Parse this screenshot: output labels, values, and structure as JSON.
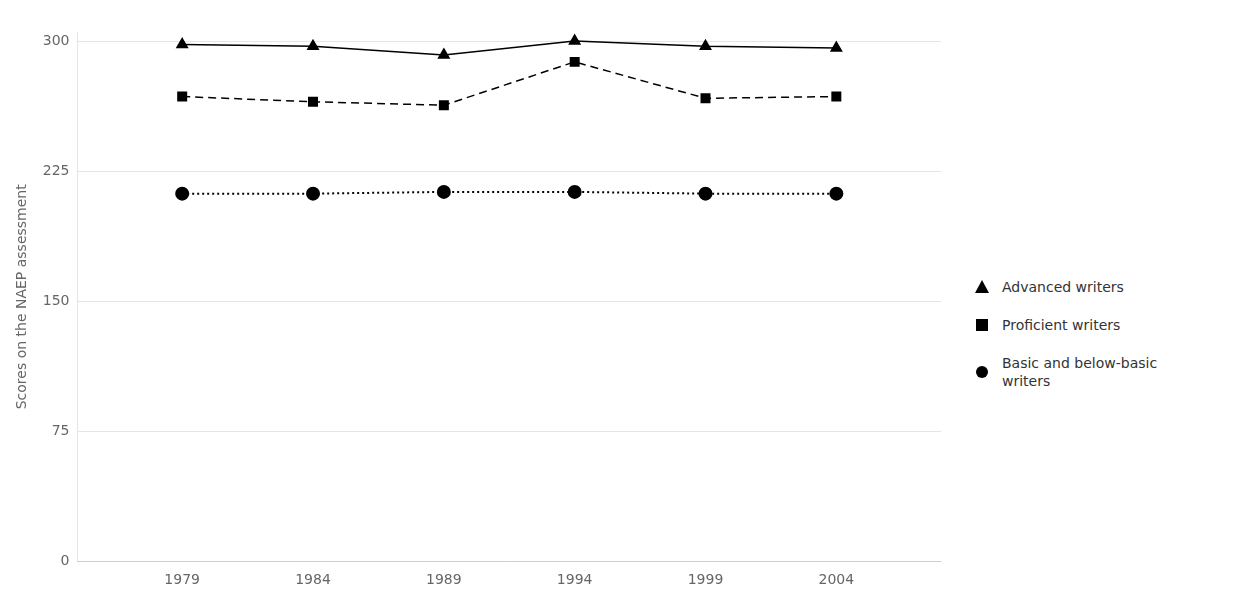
{
  "chart_data": {
    "type": "line",
    "x": [
      1979,
      1984,
      1989,
      1994,
      1999,
      2004
    ],
    "series": [
      {
        "name": "Advanced writers",
        "color": "#000000",
        "values": [
          298,
          297,
          292,
          300,
          297,
          296
        ],
        "marker": "triangle",
        "line_style": "solid"
      },
      {
        "name": "Proficient writers",
        "color": "#000000",
        "values": [
          268,
          265,
          263,
          288,
          267,
          268
        ],
        "marker": "square",
        "line_style": "dashed"
      },
      {
        "name": "Basic and below-basic\nwriters",
        "color": "#000000",
        "values": [
          212,
          212,
          213,
          213,
          212,
          212
        ],
        "marker": "circle",
        "line_style": "dotted"
      }
    ],
    "ylabel": "Scores on the NAEP assessment",
    "xlim": [
      1975,
      2008
    ],
    "xticks": [
      1979,
      1984,
      1989,
      1994,
      1999,
      2004
    ],
    "ylim": [
      0,
      305
    ],
    "yticks": [
      0,
      75,
      150,
      225,
      300
    ],
    "grid": true,
    "legend": "right"
  }
}
